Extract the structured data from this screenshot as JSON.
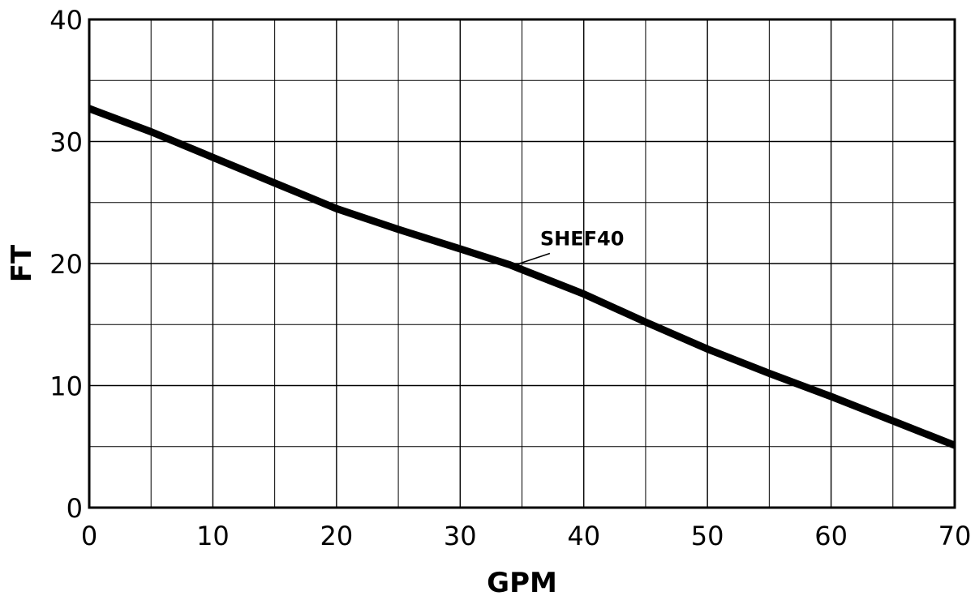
{
  "chart_data": {
    "type": "line",
    "title": "",
    "xlabel": "GPM",
    "ylabel": "FT",
    "xlim": [
      0,
      70
    ],
    "ylim": [
      0,
      40
    ],
    "xticks": [
      0,
      10,
      20,
      30,
      40,
      50,
      60,
      70
    ],
    "yticks": [
      0,
      10,
      20,
      30,
      40
    ],
    "grid": true,
    "series": [
      {
        "name": "SHEF40",
        "x": [
          0,
          5,
          10,
          15,
          20,
          25,
          30,
          34,
          40,
          45,
          50,
          55,
          60,
          65,
          70
        ],
        "y": [
          32.7,
          30.8,
          28.7,
          26.6,
          24.5,
          22.8,
          21.2,
          19.9,
          17.5,
          15.2,
          13.0,
          11.0,
          9.1,
          7.1,
          5.1
        ]
      }
    ],
    "annotations": [
      {
        "text": "SHEF40",
        "x": 34.5,
        "y": 19.9
      }
    ]
  }
}
